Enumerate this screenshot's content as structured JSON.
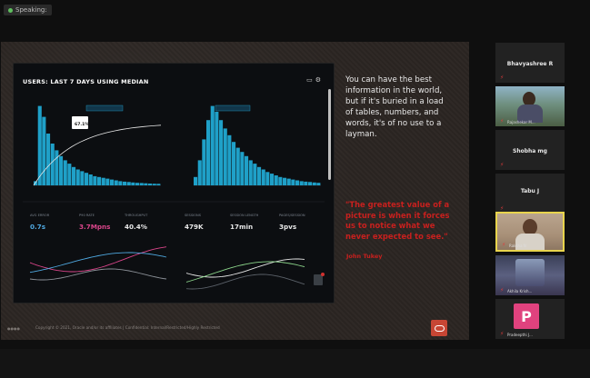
{
  "window": {
    "title_chip": "Speaking:"
  },
  "slide": {
    "dashboard_title": "USERS: LAST 7 DAYS USING MEDIAN",
    "quote_text": "You can have the best information in the world, but if it's buried in a load of tables, numbers, and words, it's of no use to a layman.",
    "red_quote": "\"The greatest value of a picture is when it forces us to notice what we never expected to see.\"",
    "red_author": "John Tukey",
    "footer": "Copyright © 2021, Oracle and/or its affiliates | Confidential: Internal/Restricted/Highly Restricted",
    "stats": [
      {
        "label": "AVG ERROR",
        "value": "0.7s",
        "color": "#4fa8e0"
      },
      {
        "label": "P90 RATE",
        "value": "3.7Mpns",
        "color": "#d9458a"
      },
      {
        "label": "THROUGHPUT",
        "value": "40.4%",
        "color": "#e8e8e8"
      },
      {
        "label": "SESSIONS",
        "value": "479K",
        "color": "#e8e8e8"
      },
      {
        "label": "SESSION LENGTH",
        "value": "17min",
        "color": "#e8e8e8"
      },
      {
        "label": "PAGES/SESSION",
        "value": "3pvs",
        "color": "#e8e8e8"
      }
    ],
    "histogram_left": [
      0.05,
      0.95,
      0.82,
      0.62,
      0.5,
      0.42,
      0.35,
      0.3,
      0.26,
      0.22,
      0.19,
      0.17,
      0.15,
      0.13,
      0.11,
      0.1,
      0.09,
      0.08,
      0.07,
      0.06,
      0.05,
      0.045,
      0.04,
      0.035,
      0.03,
      0.028,
      0.025,
      0.022,
      0.02,
      0.018
    ],
    "histogram_right": [
      0.1,
      0.3,
      0.55,
      0.78,
      0.95,
      0.88,
      0.78,
      0.68,
      0.6,
      0.52,
      0.45,
      0.4,
      0.35,
      0.3,
      0.26,
      0.22,
      0.19,
      0.16,
      0.14,
      0.12,
      0.1,
      0.09,
      0.08,
      0.07,
      0.06,
      0.05,
      0.045,
      0.04,
      0.035,
      0.03
    ],
    "tooltip_value": "67.1%"
  },
  "participants": [
    {
      "name": "Bhavyashree R",
      "label": ""
    },
    {
      "name": "",
      "label": "Rajashekar M..."
    },
    {
      "name": "Shobha mg",
      "label": ""
    },
    {
      "name": "Tabu J",
      "label": ""
    },
    {
      "name": "",
      "label": "Raksha N"
    },
    {
      "name": "",
      "label": "Akhila Krish..."
    },
    {
      "name": "",
      "label": "Pradeepthi J..."
    }
  ],
  "colors": {
    "accent_red": "#c8201e",
    "bar_blue": "#1fa0c8",
    "speaker_border": "#e8d44d"
  }
}
